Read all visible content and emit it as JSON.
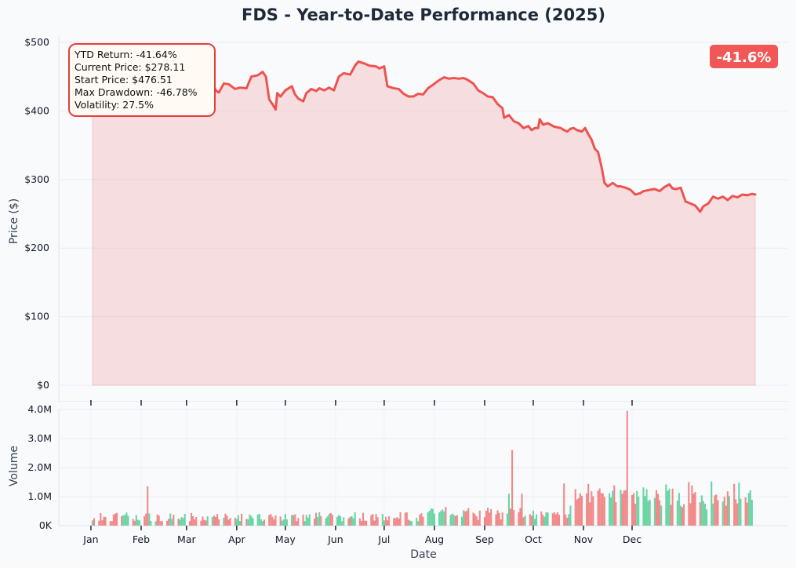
{
  "chart_data": [
    {
      "type": "area",
      "title": "FDS - Year-to-Date Performance (2025)",
      "ylabel": "Price ($)",
      "xlabel": "",
      "ylim": [
        0,
        500
      ],
      "yticks": [
        0,
        100,
        200,
        300,
        400,
        500
      ],
      "ytick_labels": [
        "$0",
        "$100",
        "$200",
        "$300",
        "$400",
        "$500"
      ],
      "grid": true,
      "series": [
        {
          "color": "#ef5350",
          "points": [
            [
              "2025-01-02",
              476.5
            ],
            [
              "2025-01-06",
              470
            ],
            [
              "2025-01-10",
              462
            ],
            [
              "2025-01-15",
              458
            ],
            [
              "2025-01-20",
              452
            ],
            [
              "2025-01-24",
              456
            ],
            [
              "2025-01-28",
              450
            ],
            [
              "2025-02-01",
              453
            ],
            [
              "2025-02-05",
              449
            ],
            [
              "2025-02-10",
              455
            ],
            [
              "2025-02-14",
              451
            ],
            [
              "2025-02-18",
              447
            ],
            [
              "2025-02-20",
              452
            ],
            [
              "2025-02-24",
              446
            ],
            [
              "2025-02-27",
              458
            ],
            [
              "2025-03-01",
              462
            ],
            [
              "2025-03-04",
              458
            ],
            [
              "2025-03-06",
              455
            ],
            [
              "2025-03-10",
              444
            ],
            [
              "2025-03-13",
              440
            ],
            [
              "2025-03-17",
              442
            ],
            [
              "2025-03-19",
              430
            ],
            [
              "2025-03-21",
              427
            ],
            [
              "2025-03-24",
              440
            ],
            [
              "2025-03-27",
              439
            ],
            [
              "2025-03-31",
              432
            ],
            [
              "2025-04-03",
              434
            ],
            [
              "2025-04-07",
              433
            ],
            [
              "2025-04-10",
              450
            ],
            [
              "2025-04-14",
              452
            ],
            [
              "2025-04-17",
              457
            ],
            [
              "2025-04-19",
              450
            ],
            [
              "2025-04-21",
              417
            ],
            [
              "2025-04-23",
              410
            ],
            [
              "2025-04-25",
              402
            ],
            [
              "2025-04-26",
              426
            ],
            [
              "2025-04-28",
              421
            ],
            [
              "2025-05-01",
              430
            ],
            [
              "2025-05-05",
              436
            ],
            [
              "2025-05-07",
              424
            ],
            [
              "2025-05-09",
              418
            ],
            [
              "2025-05-12",
              414
            ],
            [
              "2025-05-14",
              426
            ],
            [
              "2025-05-17",
              432
            ],
            [
              "2025-05-20",
              429
            ],
            [
              "2025-05-22",
              433
            ],
            [
              "2025-05-25",
              430
            ],
            [
              "2025-05-28",
              434
            ],
            [
              "2025-05-31",
              430
            ],
            [
              "2025-06-03",
              450
            ],
            [
              "2025-06-06",
              455
            ],
            [
              "2025-06-10",
              453
            ],
            [
              "2025-06-13",
              466
            ],
            [
              "2025-06-15",
              472
            ],
            [
              "2025-06-19",
              469
            ],
            [
              "2025-06-22",
              466
            ],
            [
              "2025-06-26",
              465
            ],
            [
              "2025-06-28",
              462
            ],
            [
              "2025-07-01",
              465
            ],
            [
              "2025-07-03",
              436
            ],
            [
              "2025-07-07",
              433
            ],
            [
              "2025-07-10",
              432
            ],
            [
              "2025-07-13",
              425
            ],
            [
              "2025-07-16",
              421
            ],
            [
              "2025-07-19",
              421
            ],
            [
              "2025-07-22",
              425
            ],
            [
              "2025-07-25",
              424
            ],
            [
              "2025-07-28",
              433
            ],
            [
              "2025-07-31",
              438
            ],
            [
              "2025-08-04",
              445
            ],
            [
              "2025-08-07",
              449
            ],
            [
              "2025-08-10",
              447
            ],
            [
              "2025-08-13",
              448
            ],
            [
              "2025-08-16",
              447
            ],
            [
              "2025-08-19",
              448
            ],
            [
              "2025-08-21",
              446
            ],
            [
              "2025-08-25",
              440
            ],
            [
              "2025-08-28",
              430
            ],
            [
              "2025-08-31",
              426
            ],
            [
              "2025-09-03",
              421
            ],
            [
              "2025-09-06",
              420
            ],
            [
              "2025-09-09",
              410
            ],
            [
              "2025-09-12",
              404
            ],
            [
              "2025-09-13",
              390
            ],
            [
              "2025-09-16",
              394
            ],
            [
              "2025-09-19",
              385
            ],
            [
              "2025-09-22",
              382
            ],
            [
              "2025-09-25",
              375
            ],
            [
              "2025-09-28",
              378
            ],
            [
              "2025-09-30",
              372
            ],
            [
              "2025-10-02",
              375
            ],
            [
              "2025-10-04",
              375
            ],
            [
              "2025-10-05",
              388
            ],
            [
              "2025-10-07",
              380
            ],
            [
              "2025-10-10",
              382
            ],
            [
              "2025-10-14",
              377
            ],
            [
              "2025-10-18",
              375
            ],
            [
              "2025-10-20",
              372
            ],
            [
              "2025-10-22",
              370
            ],
            [
              "2025-10-24",
              374
            ],
            [
              "2025-10-26",
              375
            ],
            [
              "2025-10-28",
              372
            ],
            [
              "2025-10-31",
              370
            ],
            [
              "2025-11-02",
              375
            ],
            [
              "2025-11-04",
              366
            ],
            [
              "2025-11-06",
              358
            ],
            [
              "2025-11-08",
              345
            ],
            [
              "2025-11-10",
              340
            ],
            [
              "2025-11-12",
              320
            ],
            [
              "2025-11-14",
              295
            ],
            [
              "2025-11-16",
              290
            ],
            [
              "2025-11-19",
              295
            ],
            [
              "2025-11-22",
              290
            ],
            [
              "2025-11-24",
              290
            ],
            [
              "2025-11-27",
              288
            ],
            [
              "2025-11-30",
              285
            ],
            [
              "2025-12-03",
              278
            ],
            [
              "2025-12-06",
              280
            ],
            [
              "2025-12-08",
              283
            ],
            [
              "2025-12-12",
              285
            ],
            [
              "2025-12-15",
              286
            ],
            [
              "2025-12-18",
              283
            ],
            [
              "2025-12-21",
              289
            ],
            [
              "2025-12-24",
              293
            ],
            [
              "2025-12-26",
              287
            ],
            [
              "2025-12-28",
              286
            ],
            [
              "2025-12-31",
              288
            ],
            [
              "2026-01-03",
              268
            ],
            [
              "2026-01-06",
              265
            ],
            [
              "2026-01-09",
              262
            ],
            [
              "2026-01-12",
              253
            ],
            [
              "2026-01-14",
              261
            ],
            [
              "2026-01-17",
              265
            ],
            [
              "2026-01-20",
              275
            ],
            [
              "2026-01-23",
              272
            ],
            [
              "2026-01-26",
              275
            ],
            [
              "2026-01-29",
              270
            ],
            [
              "2026-02-01",
              276
            ],
            [
              "2026-02-04",
              274
            ],
            [
              "2026-02-07",
              278
            ],
            [
              "2026-02-10",
              277
            ],
            [
              "2026-02-13",
              279
            ],
            [
              "2026-02-15",
              278.11
            ]
          ]
        }
      ],
      "annotation": {
        "lines": [
          "YTD Return: -41.64%",
          "Current Price: $278.11",
          "Start Price: $476.51",
          "Max Drawdown: -46.78%",
          "Volatility: 27.5%"
        ],
        "placement": "top-left",
        "border_color": "#e53e3e"
      },
      "badge": {
        "text": "-41.6%",
        "placement": "top-right",
        "color": "#f25757"
      }
    },
    {
      "type": "bar",
      "title": "",
      "xlabel": "Date",
      "ylabel": "Volume",
      "ylim": [
        0,
        4000000
      ],
      "yticks": [
        0,
        1000000,
        2000000,
        3000000,
        4000000
      ],
      "ytick_labels": [
        "0K",
        "1.0M",
        "2.0M",
        "3.0M",
        "4.0M"
      ],
      "xticks": [
        "2025-01-01",
        "2025-02-01",
        "2025-03-01",
        "2025-04-01",
        "2025-05-01",
        "2025-06-01",
        "2025-07-01",
        "2025-08-01",
        "2025-09-01",
        "2025-10-01",
        "2025-11-01",
        "2025-12-01"
      ],
      "xtick_labels": [
        "Jan",
        "Feb",
        "Mar",
        "Apr",
        "May",
        "Jun",
        "Jul",
        "Aug",
        "Sep",
        "Oct",
        "Nov",
        "Dec"
      ],
      "up_color": "#5ccf9a",
      "down_color": "#f07c7c",
      "volume_mode": "generated-to-match-visual"
    }
  ]
}
